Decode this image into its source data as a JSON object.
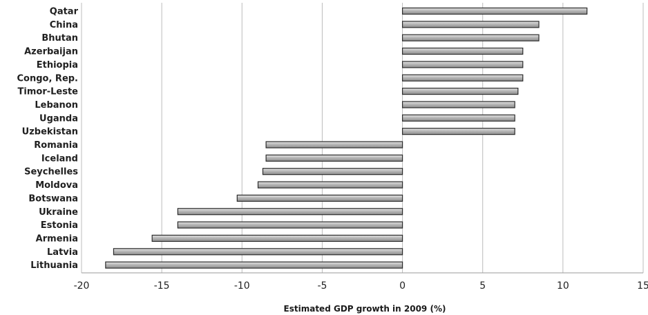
{
  "chart_data": {
    "type": "bar",
    "orientation": "horizontal",
    "title": "",
    "xlabel": "Estimated GDP growth in 2009 (%)",
    "ylabel": "",
    "xlim": [
      -20,
      15
    ],
    "x_ticks": [
      "-20",
      "-15",
      "-10",
      "-5",
      "0",
      "5",
      "10",
      "15"
    ],
    "grid": "vertical",
    "legend": "none",
    "categories": [
      "Qatar",
      "China",
      "Bhutan",
      "Azerbaijan",
      "Ethiopia",
      "Congo, Rep.",
      "Timor-Leste",
      "Lebanon",
      "Uganda",
      "Uzbekistan",
      "Romania",
      "Iceland",
      "Seychelles",
      "Moldova",
      "Botswana",
      "Ukraine",
      "Estonia",
      "Armenia",
      "Latvia",
      "Lithuania"
    ],
    "values": [
      11.5,
      8.5,
      8.5,
      7.5,
      7.5,
      7.5,
      7.2,
      7.0,
      7.0,
      7.0,
      -8.5,
      -8.5,
      -8.7,
      -9.0,
      -10.3,
      -14.0,
      -14.0,
      -15.6,
      -18.0,
      -18.5
    ],
    "colors": {
      "bar_fill": "#b9b9b9",
      "bar_stroke": "#2b2b2b",
      "grid": "#bcbcbc"
    }
  }
}
